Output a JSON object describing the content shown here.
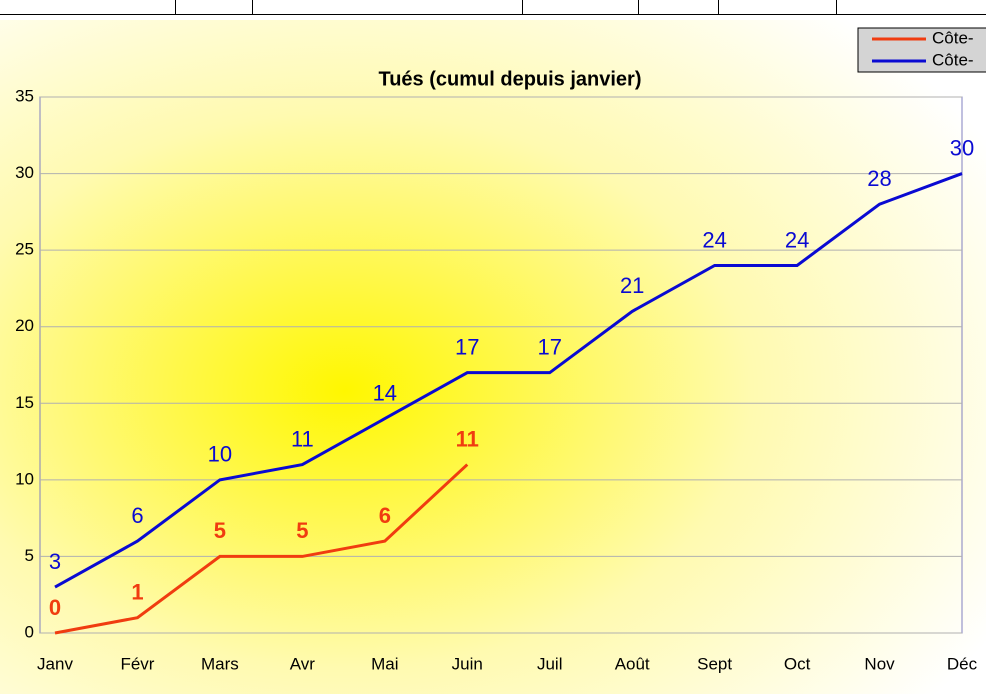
{
  "chart_data": {
    "type": "line",
    "title": "Tués (cumul depuis janvier)",
    "categories": [
      "Janv",
      "Févr",
      "Mars",
      "Avr",
      "Mai",
      "Juin",
      "Juil",
      "Août",
      "Sept",
      "Oct",
      "Nov",
      "Déc"
    ],
    "series": [
      {
        "name": "Côte-",
        "color": "#f03c10",
        "values": [
          0,
          1,
          5,
          5,
          6,
          11,
          null,
          null,
          null,
          null,
          null,
          null
        ]
      },
      {
        "name": "Côte-",
        "color": "#0a0ad2",
        "values": [
          3,
          6,
          10,
          11,
          14,
          17,
          17,
          21,
          24,
          24,
          28,
          30
        ]
      }
    ],
    "ylim": [
      0,
      35
    ],
    "yticks": [
      0,
      5,
      10,
      15,
      20,
      25,
      30,
      35
    ],
    "grid": true
  }
}
